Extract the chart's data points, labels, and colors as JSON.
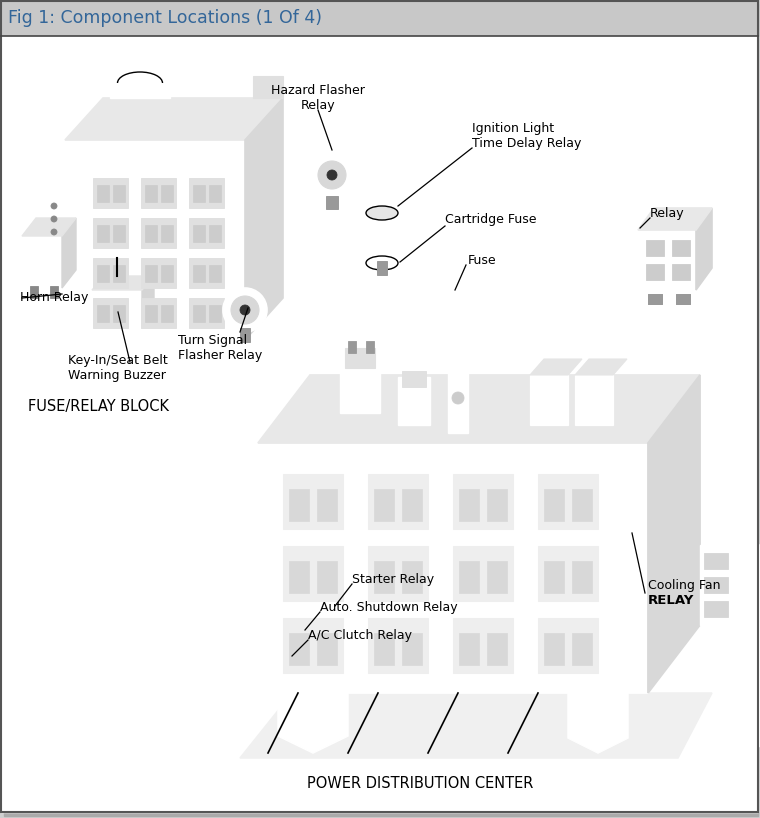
{
  "title": "Fig 1: Component Locations (1 Of 4)",
  "title_color": "#336699",
  "header_bg": "#c8c8c8",
  "outer_bg": "#d0d0d0",
  "inner_bg": "#ffffff",
  "border_color": "#222222",
  "figsize": [
    7.6,
    8.18
  ],
  "dpi": 100,
  "labels": {
    "hazard_flasher": "Hazard Flasher\nRelay",
    "ignition_light": "Ignition Light\nTime Delay Relay",
    "cartridge_fuse": "Cartridge Fuse",
    "fuse": "Fuse",
    "relay_top": "Relay",
    "horn_relay": "Horn Relay",
    "turn_signal": "Turn Signal\nFlasher Relay",
    "key_in": "Key-In/Seat Belt\nWarning Buzzer",
    "fuse_relay_block": "FUSE/RELAY BLOCK",
    "starter_relay": "Starter Relay",
    "auto_shutdown": "Auto. Shutdown Relay",
    "ac_clutch": "A/C Clutch Relay",
    "power_dist": "POWER DISTRIBUTION CENTER",
    "cooling_fan": "Cooling Fan\nRELAY"
  }
}
